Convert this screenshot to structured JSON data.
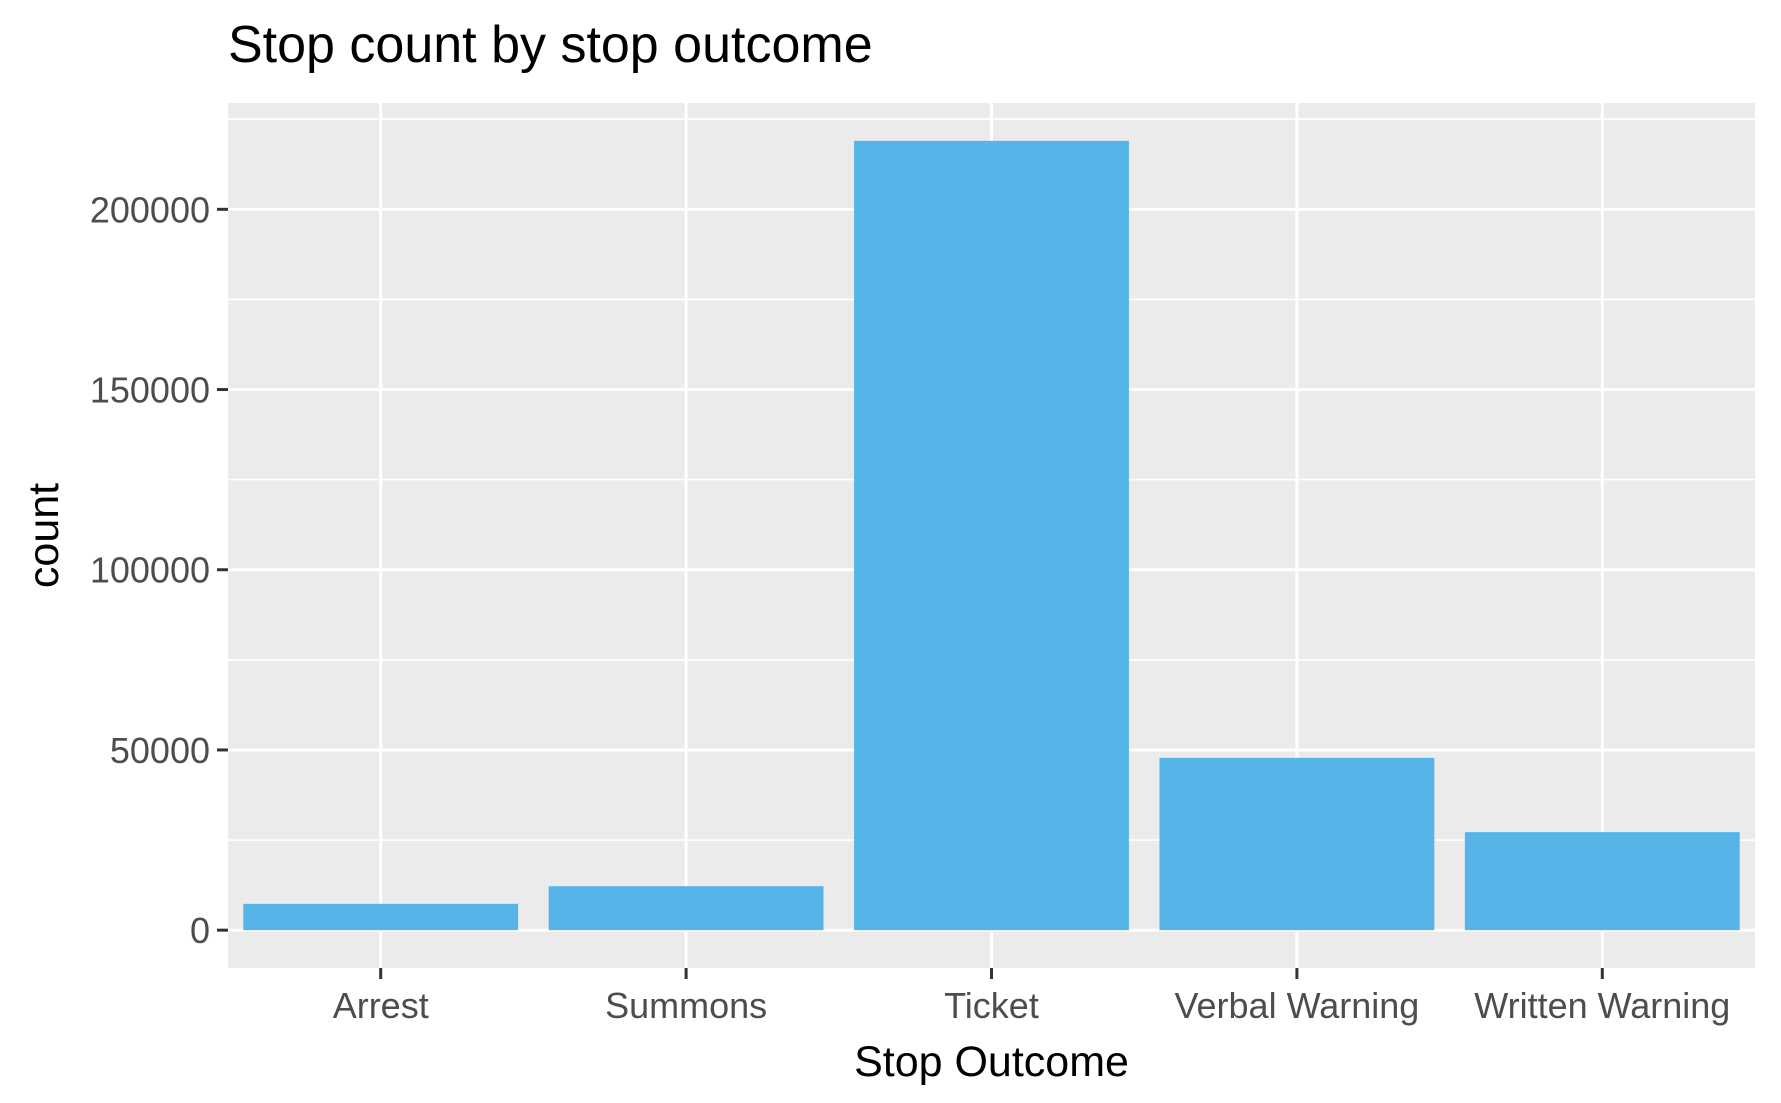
{
  "chart_data": {
    "type": "bar",
    "title": "Stop count by stop outcome",
    "xlabel": "Stop Outcome",
    "ylabel": "count",
    "categories": [
      "Arrest",
      "Summons",
      "Ticket",
      "Verbal Warning",
      "Written Warning"
    ],
    "values": [
      7300,
      12200,
      219000,
      47800,
      27200
    ],
    "ylim": [
      -10500,
      229500
    ],
    "yticks": [
      0,
      50000,
      100000,
      150000,
      200000
    ],
    "ytick_labels": [
      "0",
      "50000",
      "100000",
      "150000",
      "200000"
    ],
    "grid": true,
    "legend": "none",
    "colors": {
      "bar": "#56B4E9",
      "panel": "#EBEBEB",
      "grid": "#FFFFFF",
      "tick": "#333333"
    }
  }
}
